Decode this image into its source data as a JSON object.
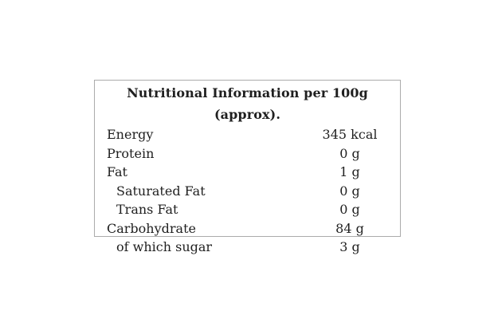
{
  "nutrition": {
    "title": "Nutritional Information per 100g (approx).",
    "rows": [
      {
        "label": "Energy",
        "value": "345 kcal"
      },
      {
        "label": "Protein",
        "value": "0 g"
      },
      {
        "label": "Fat",
        "value": "1 g"
      },
      {
        "label": "Saturated Fat",
        "value": "0 g"
      },
      {
        "label": "Trans Fat",
        "value": "0 g"
      },
      {
        "label": "Carbohydrate",
        "value": "84 g"
      },
      {
        "label": "of which sugar",
        "value": "3 g"
      }
    ],
    "colors": {
      "text": "#1f1f1f",
      "border": "#ababab",
      "background": "#ffffff"
    }
  }
}
